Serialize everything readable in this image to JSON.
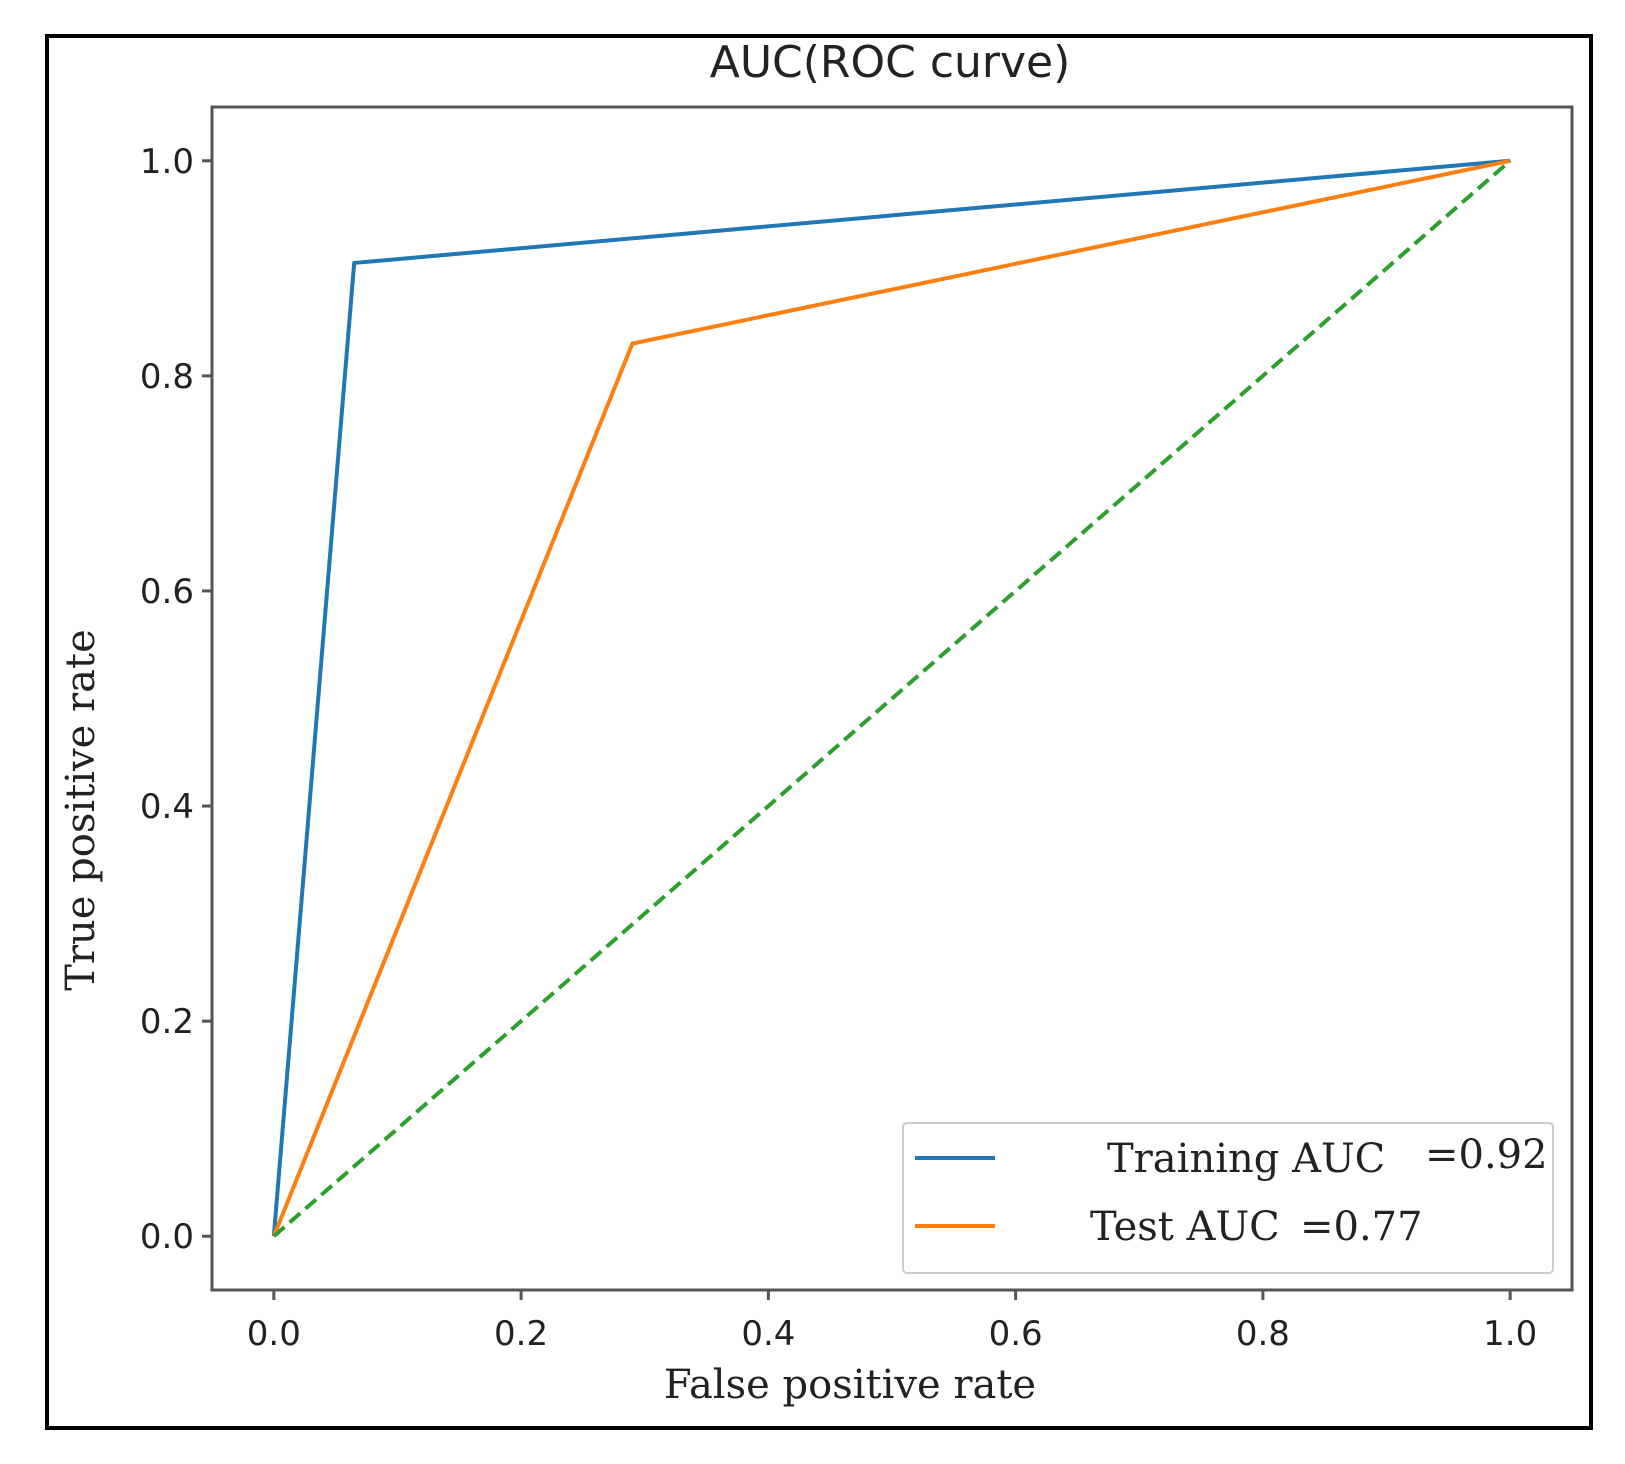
{
  "chart_data": {
    "type": "line",
    "title": "AUC(ROC curve)",
    "xlabel": "False positive rate",
    "ylabel": "True positive rate",
    "xlim": [
      -0.05,
      1.05
    ],
    "ylim": [
      -0.05,
      1.05
    ],
    "x_ticks": [
      "0.0",
      "0.2",
      "0.4",
      "0.6",
      "0.8",
      "1.0"
    ],
    "y_ticks": [
      "0.0",
      "0.2",
      "0.4",
      "0.6",
      "0.8",
      "1.0"
    ],
    "grid": false,
    "legend_position": "lower-right",
    "series": [
      {
        "name": "Training AUC",
        "legend_value": "=0.92",
        "color": "#1f77b4",
        "style": "solid",
        "x": [
          0.0,
          0.065,
          1.0
        ],
        "y": [
          0.0,
          0.905,
          1.0
        ]
      },
      {
        "name": "Test AUC",
        "legend_value": "=0.77",
        "color": "#ff7f0e",
        "style": "solid",
        "x": [
          0.0,
          0.29,
          1.0
        ],
        "y": [
          0.0,
          0.83,
          1.0
        ]
      },
      {
        "color": "#2ca02c",
        "style": "dashed",
        "x": [
          0.0,
          1.0
        ],
        "y": [
          0.0,
          1.0
        ]
      }
    ]
  }
}
